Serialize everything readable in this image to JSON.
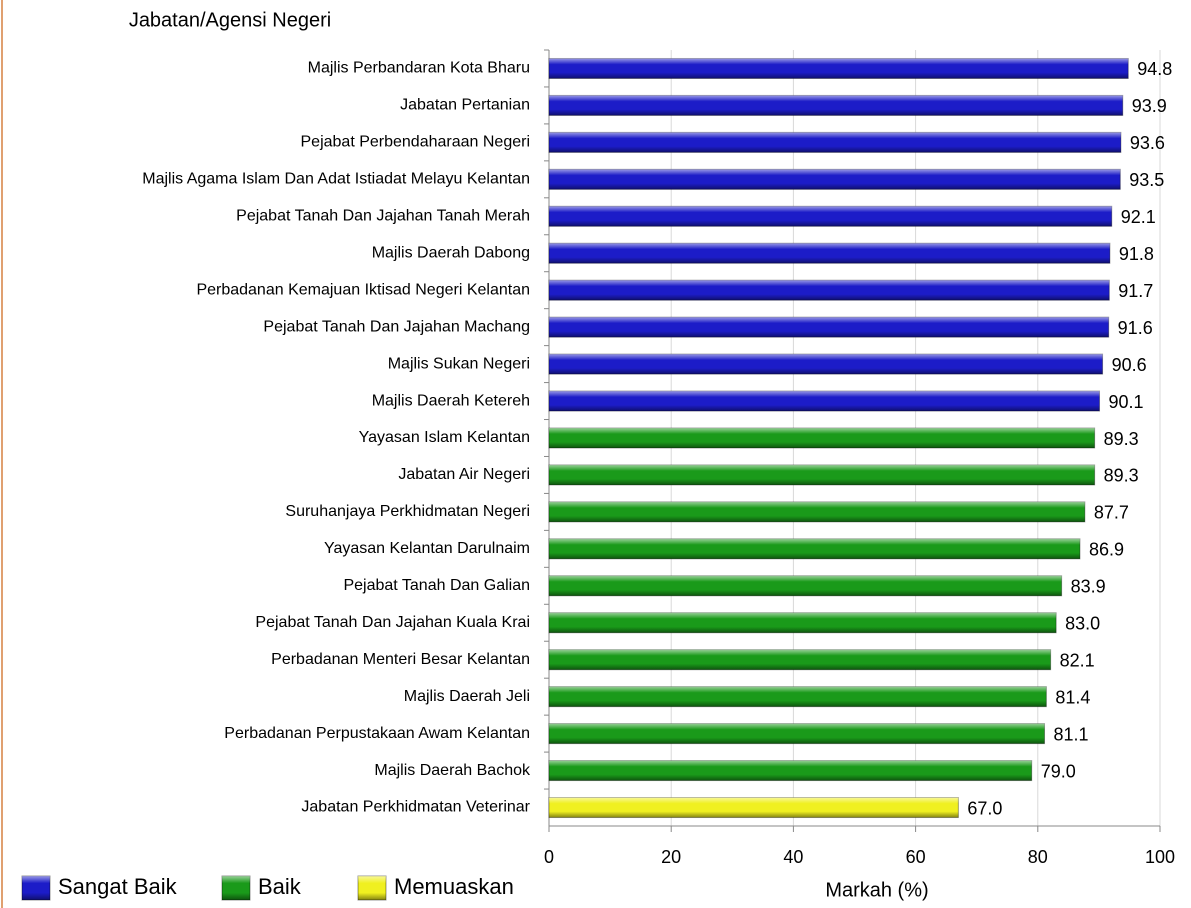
{
  "chart_data": {
    "type": "bar",
    "orientation": "horizontal",
    "y_axis_title": "Jabatan/Agensi Negeri",
    "x_axis_title": "Markah (%)",
    "categories": [
      "Majlis Perbandaran Kota Bharu",
      "Jabatan Pertanian",
      "Pejabat Perbendaharaan Negeri",
      "Majlis Agama Islam Dan Adat Istiadat Melayu Kelantan",
      "Pejabat Tanah Dan Jajahan Tanah Merah",
      "Majlis Daerah Dabong",
      "Perbadanan Kemajuan Iktisad Negeri Kelantan",
      "Pejabat Tanah Dan Jajahan Machang",
      "Majlis Sukan Negeri",
      "Majlis Daerah Ketereh",
      "Yayasan Islam Kelantan",
      "Jabatan Air Negeri",
      "Suruhanjaya Perkhidmatan Negeri",
      "Yayasan Kelantan Darulnaim",
      "Pejabat Tanah Dan Galian",
      "Pejabat Tanah Dan Jajahan Kuala Krai",
      "Perbadanan Menteri Besar Kelantan",
      "Majlis Daerah Jeli",
      "Perbadanan Perpustakaan Awam Kelantan",
      "Majlis Daerah Bachok",
      "Jabatan Perkhidmatan Veterinar"
    ],
    "series": [
      {
        "name": "Sangat Baik",
        "color": "#1c1cc8",
        "values": [
          94.8,
          93.9,
          93.6,
          93.5,
          92.1,
          91.8,
          91.7,
          91.6,
          90.6,
          90.1,
          null,
          null,
          null,
          null,
          null,
          null,
          null,
          null,
          null,
          null,
          null
        ],
        "value_labels": [
          "94.8",
          "93.9",
          "93.6",
          "93.5",
          "92.1",
          "91.8",
          "91.7",
          "91.6",
          "90.6",
          "90.1",
          null,
          null,
          null,
          null,
          null,
          null,
          null,
          null,
          null,
          null,
          null
        ]
      },
      {
        "name": "Baik",
        "color": "#1a9a1a",
        "values": [
          null,
          null,
          null,
          null,
          null,
          null,
          null,
          null,
          null,
          null,
          89.3,
          89.3,
          87.7,
          86.9,
          83.9,
          83,
          82.1,
          81.4,
          81.1,
          79,
          null
        ],
        "value_labels": [
          null,
          null,
          null,
          null,
          null,
          null,
          null,
          null,
          null,
          null,
          "89.3",
          "89.3",
          "87.7",
          "86.9",
          "83.9",
          "83.0",
          "82.1",
          "81.4",
          "81.1",
          "79.0",
          null
        ]
      },
      {
        "name": "Memuaskan",
        "color": "#f0f020",
        "values": [
          null,
          null,
          null,
          null,
          null,
          null,
          null,
          null,
          null,
          null,
          null,
          null,
          null,
          null,
          null,
          null,
          null,
          null,
          null,
          null,
          67
        ],
        "value_labels": [
          null,
          null,
          null,
          null,
          null,
          null,
          null,
          null,
          null,
          null,
          null,
          null,
          null,
          null,
          null,
          null,
          null,
          null,
          null,
          null,
          "67.0"
        ]
      }
    ],
    "xlim": [
      0,
      100
    ],
    "xticks": [
      0,
      20,
      40,
      60,
      80,
      100
    ],
    "grid": true,
    "legend": "bottom"
  }
}
